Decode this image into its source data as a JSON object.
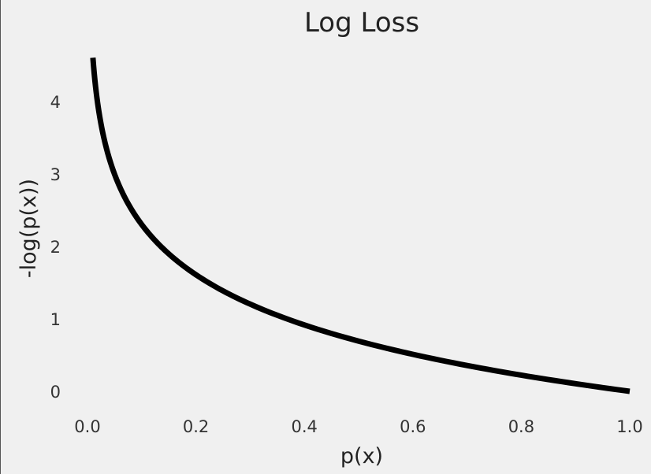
{
  "chart_data": {
    "type": "line",
    "title": "Log Loss",
    "xlabel": "p(x)",
    "ylabel": "-log(p(x))",
    "xlim": [
      0.0,
      1.0
    ],
    "ylim": [
      0,
      4.6
    ],
    "x_ticks": [
      "0.0",
      "0.2",
      "0.4",
      "0.6",
      "0.8",
      "1.0"
    ],
    "y_ticks": [
      "0",
      "1",
      "2",
      "3",
      "4"
    ],
    "grid": false,
    "series": [
      {
        "x": [
          0.01,
          0.02,
          0.03,
          0.05,
          0.08,
          0.1,
          0.15,
          0.2,
          0.25,
          0.3,
          0.4,
          0.5,
          0.6,
          0.7,
          0.8,
          0.9,
          1.0
        ],
        "y": [
          4.605,
          3.912,
          3.507,
          2.996,
          2.526,
          2.303,
          1.897,
          1.609,
          1.386,
          1.204,
          0.916,
          0.693,
          0.511,
          0.357,
          0.223,
          0.105,
          0.0
        ],
        "color": "#000000"
      }
    ]
  }
}
